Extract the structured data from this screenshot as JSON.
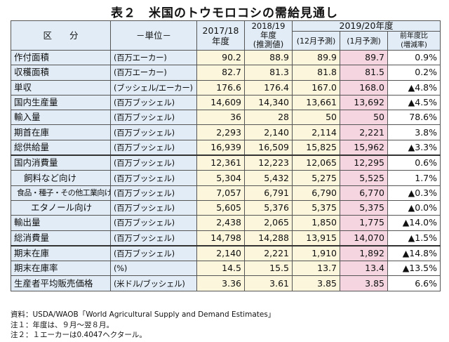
{
  "title": "表２　米国のトウモロコシの需給見通し",
  "header": {
    "category": "区　　分",
    "unit": "－単位－",
    "col1": "2017/18\n年度",
    "col2": "2018/19\n年度\n(推測値)",
    "group": "2019/20年度",
    "dec": "(12月予測)",
    "jan": "(1月予測)",
    "change": "前年度比\n(増減率)"
  },
  "rows": [
    {
      "label": "作付面積",
      "unit": "(百万エーカー)",
      "v1": "90.2",
      "v2": "88.9",
      "v3": "89.9",
      "v4": "89.7",
      "chg": "0.9%"
    },
    {
      "label": "収穫面積",
      "unit": "(百万エーカー)",
      "v1": "82.7",
      "v2": "81.3",
      "v3": "81.8",
      "v4": "81.5",
      "chg": "0.2%"
    },
    {
      "label": "単収",
      "unit": "(ブッシェル/エーカー)",
      "v1": "176.6",
      "v2": "176.4",
      "v3": "167.0",
      "v4": "168.0",
      "chg": "▲4.8%"
    },
    {
      "label": "国内生産量",
      "unit": "(百万ブッシェル)",
      "v1": "14,609",
      "v2": "14,340",
      "v3": "13,661",
      "v4": "13,692",
      "chg": "▲4.5%"
    },
    {
      "label": "輸入量",
      "unit": "(百万ブッシェル)",
      "v1": "36",
      "v2": "28",
      "v3": "50",
      "v4": "50",
      "chg": "78.6%"
    },
    {
      "label": "期首在庫",
      "unit": "(百万ブッシェル)",
      "v1": "2,293",
      "v2": "2,140",
      "v3": "2,114",
      "v4": "2,221",
      "chg": "3.8%"
    },
    {
      "label": "総供給量",
      "unit": "(百万ブッシェル)",
      "v1": "16,939",
      "v2": "16,509",
      "v3": "15,825",
      "v4": "15,962",
      "chg": "▲3.3%"
    },
    {
      "label": "国内消費量",
      "unit": "(百万ブッシェル)",
      "v1": "12,361",
      "v2": "12,223",
      "v3": "12,065",
      "v4": "12,295",
      "chg": "0.6%"
    },
    {
      "label": "飼料など向け",
      "unit": "(百万ブッシェル)",
      "v1": "5,304",
      "v2": "5,432",
      "v3": "5,275",
      "v4": "5,525",
      "chg": "1.7%"
    },
    {
      "label": "食品・種子・その他工業向け",
      "unit": "(百万ブッシェル)",
      "v1": "7,057",
      "v2": "6,791",
      "v3": "6,790",
      "v4": "6,770",
      "chg": "▲0.3%"
    },
    {
      "label": "エタノール向け",
      "unit": "(百万ブッシェル)",
      "v1": "5,605",
      "v2": "5,376",
      "v3": "5,375",
      "v4": "5,375",
      "chg": "▲0.0%"
    },
    {
      "label": "輸出量",
      "unit": "(百万ブッシェル)",
      "v1": "2,438",
      "v2": "2,065",
      "v3": "1,850",
      "v4": "1,775",
      "chg": "▲14.0%"
    },
    {
      "label": "総消費量",
      "unit": "(百万ブッシェル)",
      "v1": "14,798",
      "v2": "14,288",
      "v3": "13,915",
      "v4": "14,070",
      "chg": "▲1.5%"
    },
    {
      "label": "期末在庫",
      "unit": "(百万ブッシェル)",
      "v1": "2,140",
      "v2": "2,221",
      "v3": "1,910",
      "v4": "1,892",
      "chg": "▲14.8%"
    },
    {
      "label": "期末在庫率",
      "unit": "(%)",
      "v1": "14.5",
      "v2": "15.5",
      "v3": "13.7",
      "v4": "13.4",
      "chg": "▲13.5%"
    },
    {
      "label": "生産者平均販売価格",
      "unit": "(米ドル/ブッシェル)",
      "v1": "3.36",
      "v2": "3.61",
      "v3": "3.85",
      "v4": "3.85",
      "chg": "6.6%"
    }
  ],
  "notes": [
    "資料：USDA/WAOB「World Agricultural Supply and Demand Estimates」",
    "注１：年度は、９月～翌８月。",
    "注２：１エーカーは0.4047ヘクタール。"
  ]
}
